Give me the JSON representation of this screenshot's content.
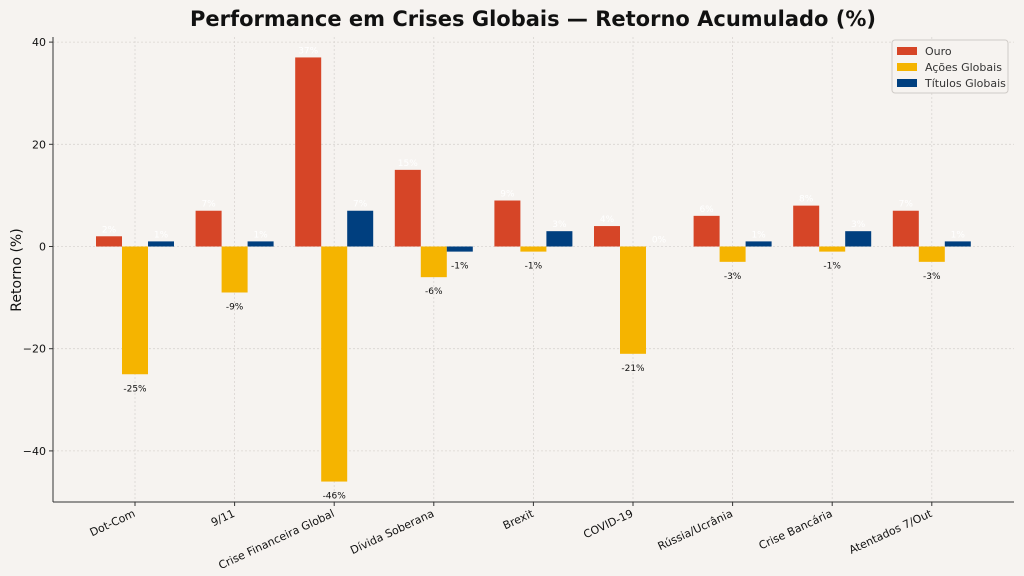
{
  "chart_data": {
    "type": "bar",
    "title": "Performance em Crises Globais — Retorno Acumulado (%)",
    "xlabel": "",
    "ylabel": "Retorno (%)",
    "ylim": [
      -50,
      41
    ],
    "yticks": [
      -40,
      -20,
      0,
      20,
      40
    ],
    "ytick_labels": [
      "−40",
      "−20",
      "0",
      "20",
      "40"
    ],
    "grid": true,
    "legend_position": "top-right",
    "categories": [
      "Dot-Com",
      "9/11",
      "Crise Financeira Global",
      "Dívida Soberana",
      "Brexit",
      "COVID-19",
      "Rússia/Ucrânia",
      "Crise Bancária",
      "Atentados 7/Out"
    ],
    "series": [
      {
        "name": "Ouro",
        "color": "#d64527",
        "values": [
          2,
          7,
          37,
          15,
          9,
          4,
          6,
          8,
          7
        ],
        "labels": [
          "2%",
          "7%",
          "37%",
          "15%",
          "9%",
          "4%",
          "6%",
          "8%",
          "7%"
        ]
      },
      {
        "name": "Ações Globais",
        "color": "#f5b400",
        "values": [
          -25,
          -9,
          -46,
          -6,
          -1,
          -21,
          -3,
          -1,
          -3
        ],
        "labels": [
          "-25%",
          "-9%",
          "-46%",
          "-6%",
          "-1%",
          "-21%",
          "-3%",
          "-1%",
          "-3%"
        ]
      },
      {
        "name": "Títulos Globais",
        "color": "#003f7f",
        "values": [
          1,
          1,
          7,
          -1,
          3,
          0,
          1,
          3,
          1
        ],
        "labels": [
          "1%",
          "1%",
          "7%",
          "-1%",
          "3%",
          "0%",
          "1%",
          "3%",
          "1%"
        ]
      }
    ]
  }
}
